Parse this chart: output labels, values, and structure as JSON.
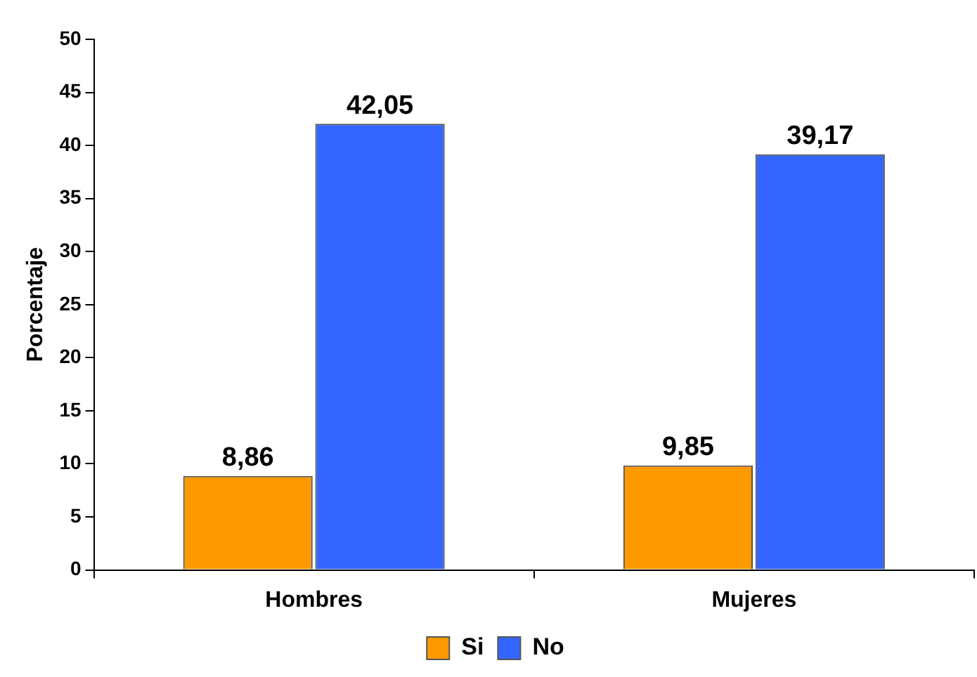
{
  "chart_data": {
    "type": "bar",
    "ylabel": "Porcentaje",
    "categories": [
      "Hombres",
      "Mujeres"
    ],
    "series": [
      {
        "name": "Si",
        "color": "#ff9900",
        "values": [
          8.86,
          9.85
        ],
        "value_labels": [
          "8,86",
          "9,85"
        ]
      },
      {
        "name": "No",
        "color": "#3366ff",
        "values": [
          42.05,
          39.17
        ],
        "value_labels": [
          "42,05",
          "39,17"
        ]
      }
    ],
    "ylim": [
      0,
      50
    ],
    "yticks": [
      0,
      5,
      10,
      15,
      20,
      25,
      30,
      35,
      40,
      45,
      50
    ],
    "grid": false,
    "legend": "bottom"
  }
}
